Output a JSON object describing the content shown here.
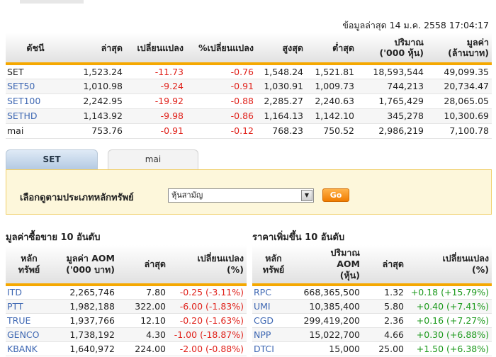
{
  "updated": "ข้อมูลล่าสุด 14 ม.ค. 2558 17:04:17",
  "index_table": {
    "headers": [
      "ดัชนี",
      "ล่าสุด",
      "เปลี่ยนแปลง",
      "%เปลี่ยนแปลง",
      "สูงสุด",
      "ต่ำสุด",
      "ปริมาณ|('000 หุ้น)",
      "มูลค่า|(ล้านบาท)"
    ],
    "rows": [
      {
        "name": "SET",
        "last": "1,523.24",
        "change": "-11.73",
        "pct": "-0.76",
        "high": "1,548.24",
        "low": "1,521.81",
        "volume": "18,593,544",
        "value": "49,099.35"
      },
      {
        "name": "SET50",
        "last": "1,010.98",
        "change": "-9.24",
        "pct": "-0.91",
        "high": "1,030.91",
        "low": "1,009.73",
        "volume": "744,213",
        "value": "20,734.47"
      },
      {
        "name": "SET100",
        "last": "2,242.95",
        "change": "-19.92",
        "pct": "-0.88",
        "high": "2,285.27",
        "low": "2,240.63",
        "volume": "1,765,429",
        "value": "28,065.05"
      },
      {
        "name": "SETHD",
        "last": "1,143.92",
        "change": "-9.98",
        "pct": "-0.86",
        "high": "1,164.13",
        "low": "1,142.10",
        "volume": "345,278",
        "value": "10,300.69"
      },
      {
        "name": "mai",
        "last": "753.76",
        "change": "-0.91",
        "pct": "-0.12",
        "high": "768.23",
        "low": "750.52",
        "volume": "2,986,219",
        "value": "7,100.78"
      }
    ]
  },
  "tabs": [
    {
      "label": "SET",
      "active": true
    },
    {
      "label": "mai",
      "active": false
    }
  ],
  "filter": {
    "label": "เลือกดูตามประเภทหลักทรัพย์",
    "selected": "หุ้นสามัญ",
    "go_label": "Go"
  },
  "top_value": {
    "title": "มูลค่าซื้อขาย 10 อันดับ",
    "headers": [
      "หลัก|ทรัพย์",
      "มูลค่า AOM|('000 บาท)",
      "ล่าสุด",
      "เปลี่ยนแปลง|(%)"
    ],
    "rows": [
      {
        "symbol": "ITD",
        "amount": "2,265,746",
        "last": "7.80",
        "change": "-0.25 (-3.11%)"
      },
      {
        "symbol": "PTT",
        "amount": "1,982,188",
        "last": "322.00",
        "change": "-6.00 (-1.83%)"
      },
      {
        "symbol": "TRUE",
        "amount": "1,937,766",
        "last": "12.10",
        "change": "-0.20 (-1.63%)"
      },
      {
        "symbol": "GENCO",
        "amount": "1,738,192",
        "last": "4.30",
        "change": "-1.00 (-18.87%)"
      },
      {
        "symbol": "KBANK",
        "amount": "1,640,972",
        "last": "224.00",
        "change": "-2.00 (-0.88%)"
      }
    ]
  },
  "top_gainers": {
    "title": "ราคาเพิ่มขึ้น 10 อันดับ",
    "headers": [
      "หลัก|ทรัพย์",
      "ปริมาณ|AOM|(หุ้น)",
      "ล่าสุด",
      "เปลี่ยนแปลง|(%)"
    ],
    "rows": [
      {
        "symbol": "RPC",
        "amount": "668,365,500",
        "last": "1.32",
        "change": "+0.18 (+15.79%)"
      },
      {
        "symbol": "UMI",
        "amount": "10,385,400",
        "last": "5.80",
        "change": "+0.40 (+7.41%)"
      },
      {
        "symbol": "CGD",
        "amount": "299,419,200",
        "last": "2.36",
        "change": "+0.16 (+7.27%)"
      },
      {
        "symbol": "NPP",
        "amount": "15,022,700",
        "last": "4.66",
        "change": "+0.30 (+6.88%)"
      },
      {
        "symbol": "DTCI",
        "amount": "15,000",
        "last": "25.00",
        "change": "+1.50 (+6.38%)"
      }
    ]
  },
  "colors": {
    "negative": "#e0221b",
    "positive": "#1d9a1d",
    "link": "#3f68b3",
    "accent": "#f5a800"
  }
}
